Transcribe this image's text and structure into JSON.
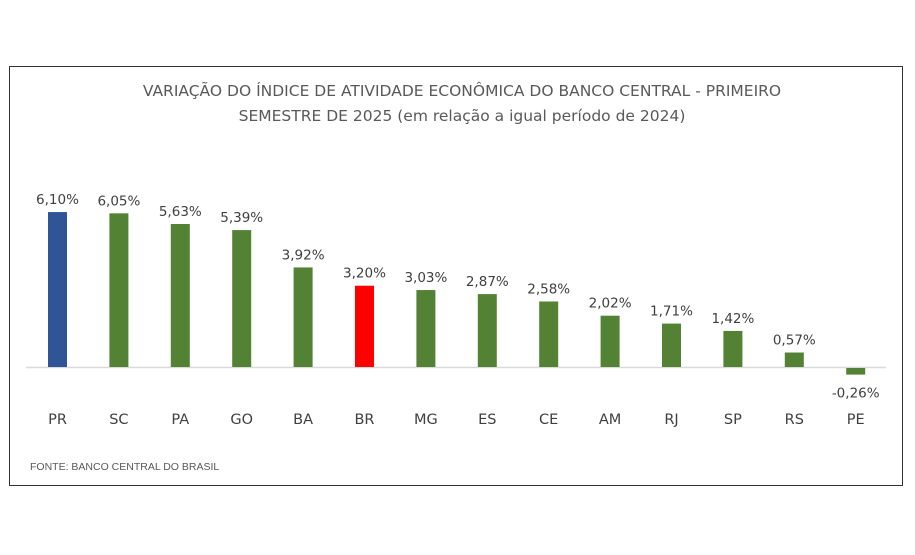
{
  "chart_data": {
    "type": "bar",
    "title_lines": [
      "VARIAÇÃO DO ÍNDICE DE ATIVIDADE ECONÔMICA DO BANCO CENTRAL - PRIMEIRO",
      "SEMESTRE DE 2025 (em relação a igual período de 2024)"
    ],
    "categories": [
      "PR",
      "SC",
      "PA",
      "GO",
      "BA",
      "BR",
      "MG",
      "ES",
      "CE",
      "AM",
      "RJ",
      "SP",
      "RS",
      "PE"
    ],
    "values": [
      6.1,
      6.05,
      5.63,
      5.39,
      3.92,
      3.2,
      3.03,
      2.87,
      2.58,
      2.02,
      1.71,
      1.42,
      0.57,
      -0.26
    ],
    "data_labels": [
      "6,10%",
      "6,05%",
      "5,63%",
      "5,39%",
      "3,92%",
      "3,20%",
      "3,03%",
      "2,87%",
      "2,58%",
      "2,02%",
      "1,71%",
      "1,42%",
      "0,57%",
      "-0,26%"
    ],
    "colors": [
      "#2f5597",
      "#548235",
      "#548235",
      "#548235",
      "#548235",
      "#ff0000",
      "#548235",
      "#548235",
      "#548235",
      "#548235",
      "#548235",
      "#548235",
      "#548235",
      "#548235"
    ],
    "xlabel": "",
    "ylabel": "",
    "grid": false,
    "legend": "none",
    "source": "FONTE: BANCO CENTRAL DO BRASIL"
  }
}
